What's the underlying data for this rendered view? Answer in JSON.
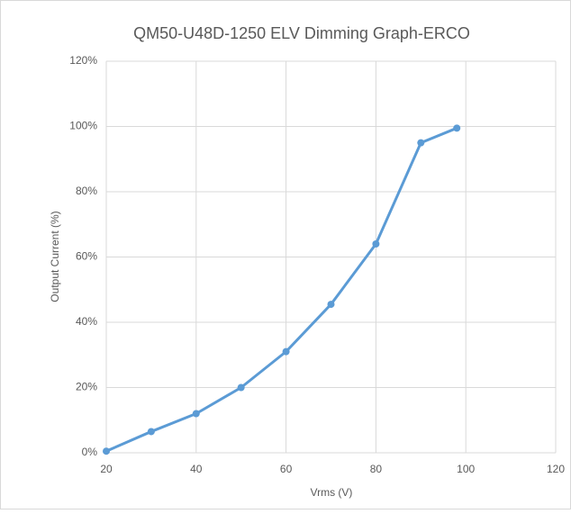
{
  "chart_data": {
    "type": "line",
    "title": "QM50-U48D-1250 ELV Dimming Graph-ERCO",
    "xlabel": "Vrms (V)",
    "ylabel": "Output Current (%)",
    "x": [
      20,
      30,
      40,
      50,
      60,
      70,
      80,
      90,
      98
    ],
    "series": [
      {
        "color": "#5b9bd5",
        "values": [
          0.5,
          6.5,
          12,
          20,
          31,
          45.5,
          64,
          95,
          99.5
        ]
      }
    ],
    "xlim": [
      20,
      120
    ],
    "xticks": [
      20,
      40,
      60,
      80,
      100,
      120
    ],
    "ylim": [
      0,
      120
    ],
    "yticks": [
      {
        "value": 0,
        "label": "0%"
      },
      {
        "value": 20,
        "label": "20%"
      },
      {
        "value": 40,
        "label": "40%"
      },
      {
        "value": 60,
        "label": "60%"
      },
      {
        "value": 80,
        "label": "80%"
      },
      {
        "value": 100,
        "label": "100%"
      },
      {
        "value": 120,
        "label": "120%"
      }
    ],
    "grid": true
  }
}
